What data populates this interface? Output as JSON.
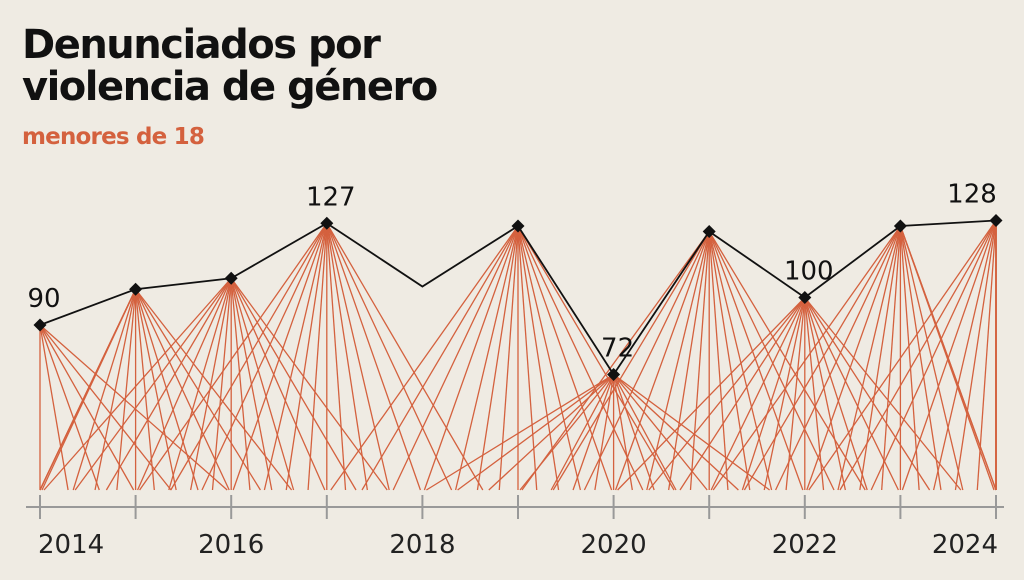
{
  "title": {
    "line1": "Denunciados por",
    "line2": "violencia de género"
  },
  "subtitle": "menores de 18",
  "chart_data": {
    "type": "line",
    "title": "Denunciados por violencia de género",
    "subtitle": "menores de 18",
    "xlabel": "",
    "ylabel": "",
    "x": [
      2014,
      2015,
      2016,
      2017,
      2018,
      2019,
      2020,
      2021,
      2022,
      2023,
      2024
    ],
    "y": [
      90,
      103,
      107,
      127,
      104,
      126,
      72,
      124,
      100,
      126,
      128
    ],
    "labeled_points": [
      {
        "x": 2014,
        "label": "90"
      },
      {
        "x": 2017,
        "label": "127"
      },
      {
        "x": 2020,
        "label": "72"
      },
      {
        "x": 2022,
        "label": "100"
      },
      {
        "x": 2024,
        "label": "128"
      }
    ],
    "marker_years": [
      2014,
      2015,
      2016,
      2017,
      2019,
      2020,
      2021,
      2022,
      2023,
      2024
    ],
    "xlim": [
      2014,
      2024
    ],
    "ylim": [
      30,
      150
    ],
    "x_ticks": [
      2014,
      2015,
      2016,
      2017,
      2018,
      2019,
      2020,
      2021,
      2022,
      2023,
      2024
    ],
    "x_tick_labels": [
      {
        "x": 2014,
        "label": "2014"
      },
      {
        "x": 2016,
        "label": "2016"
      },
      {
        "x": 2018,
        "label": "2018"
      },
      {
        "x": 2020,
        "label": "2020"
      },
      {
        "x": 2022,
        "label": "2022"
      },
      {
        "x": 2024,
        "label": "2024"
      }
    ],
    "grid": false,
    "colors": {
      "line": "#111111",
      "rays": "#d4613e",
      "axis": "#999999",
      "background": "#efebe3"
    }
  }
}
